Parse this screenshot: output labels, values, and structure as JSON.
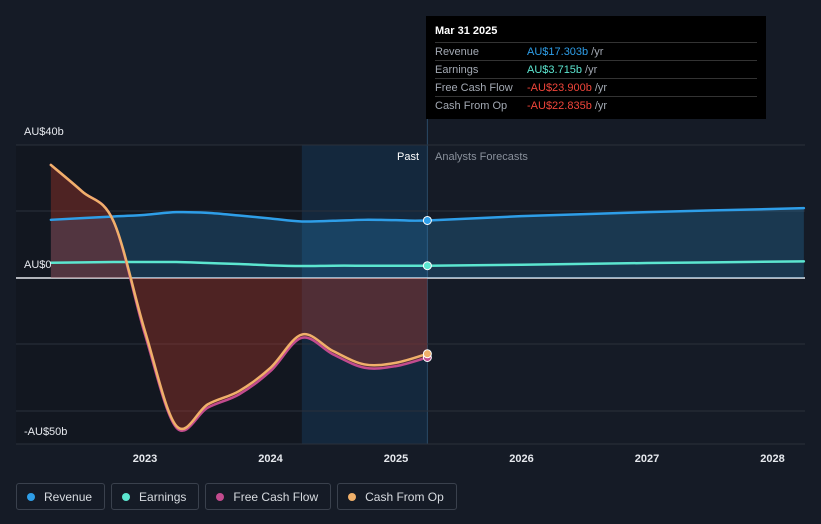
{
  "tooltip": {
    "date": "Mar 31 2025",
    "rows": [
      {
        "label": "Revenue",
        "value": "AU$17.303b",
        "unit": "/yr",
        "color": "#2e9ee8"
      },
      {
        "label": "Earnings",
        "value": "AU$3.715b",
        "unit": "/yr",
        "color": "#5ce6d0"
      },
      {
        "label": "Free Cash Flow",
        "value": "-AU$23.900b",
        "unit": "/yr",
        "color": "#f0453a"
      },
      {
        "label": "Cash From Op",
        "value": "-AU$22.835b",
        "unit": "/yr",
        "color": "#f0453a"
      }
    ]
  },
  "labels": {
    "past": "Past",
    "forecast": "Analysts Forecasts"
  },
  "legend": [
    {
      "label": "Revenue",
      "color": "#2e9ee8"
    },
    {
      "label": "Earnings",
      "color": "#5ce6d0"
    },
    {
      "label": "Free Cash Flow",
      "color": "#c24b8e"
    },
    {
      "label": "Cash From Op",
      "color": "#f0b06a"
    }
  ],
  "chart_data": {
    "type": "line",
    "y_tick_labels": [
      "AU$40b",
      "AU$0",
      "-AU$50b"
    ],
    "x_tick_labels": [
      "2023",
      "2024",
      "2025",
      "2026",
      "2027",
      "2028"
    ],
    "ylim": [
      -50,
      40
    ],
    "past_end": 2025.25,
    "series": [
      {
        "name": "Revenue",
        "color": "#2e9ee8",
        "x": [
          2022.25,
          2022.75,
          2023.0,
          2023.25,
          2023.5,
          2023.75,
          2024.0,
          2024.25,
          2024.5,
          2024.75,
          2025.0,
          2025.25,
          2026.0,
          2027.0,
          2028.25
        ],
        "y": [
          17.5,
          18.5,
          19.0,
          19.8,
          19.6,
          18.8,
          17.9,
          17.0,
          17.2,
          17.5,
          17.4,
          17.3,
          18.6,
          19.8,
          21.0
        ]
      },
      {
        "name": "Earnings",
        "color": "#5ce6d0",
        "x": [
          2022.25,
          2022.75,
          2023.0,
          2023.25,
          2023.5,
          2023.75,
          2024.0,
          2024.25,
          2024.5,
          2024.75,
          2025.0,
          2025.25,
          2026.0,
          2027.0,
          2028.25
        ],
        "y": [
          4.6,
          4.8,
          4.8,
          4.8,
          4.5,
          4.2,
          3.8,
          3.6,
          3.7,
          3.7,
          3.7,
          3.7,
          4.0,
          4.5,
          5.0
        ]
      },
      {
        "name": "Free Cash Flow",
        "color": "#c24b8e",
        "x": [
          2022.25,
          2022.5,
          2022.75,
          2023.0,
          2023.25,
          2023.5,
          2023.75,
          2024.0,
          2024.25,
          2024.5,
          2024.75,
          2025.0,
          2025.25
        ],
        "y": [
          34,
          26,
          17,
          -17,
          -45,
          -39,
          -35,
          -28,
          -18,
          -23,
          -27,
          -26.5,
          -23.9
        ]
      },
      {
        "name": "Cash From Op",
        "color": "#f0b06a",
        "x": [
          2022.25,
          2022.5,
          2022.75,
          2023.0,
          2023.25,
          2023.5,
          2023.75,
          2024.0,
          2024.25,
          2024.5,
          2024.75,
          2025.0,
          2025.25
        ],
        "y": [
          34,
          26,
          17,
          -16,
          -44.5,
          -38,
          -34,
          -27,
          -17,
          -22,
          -26,
          -25.5,
          -22.8
        ]
      }
    ]
  }
}
